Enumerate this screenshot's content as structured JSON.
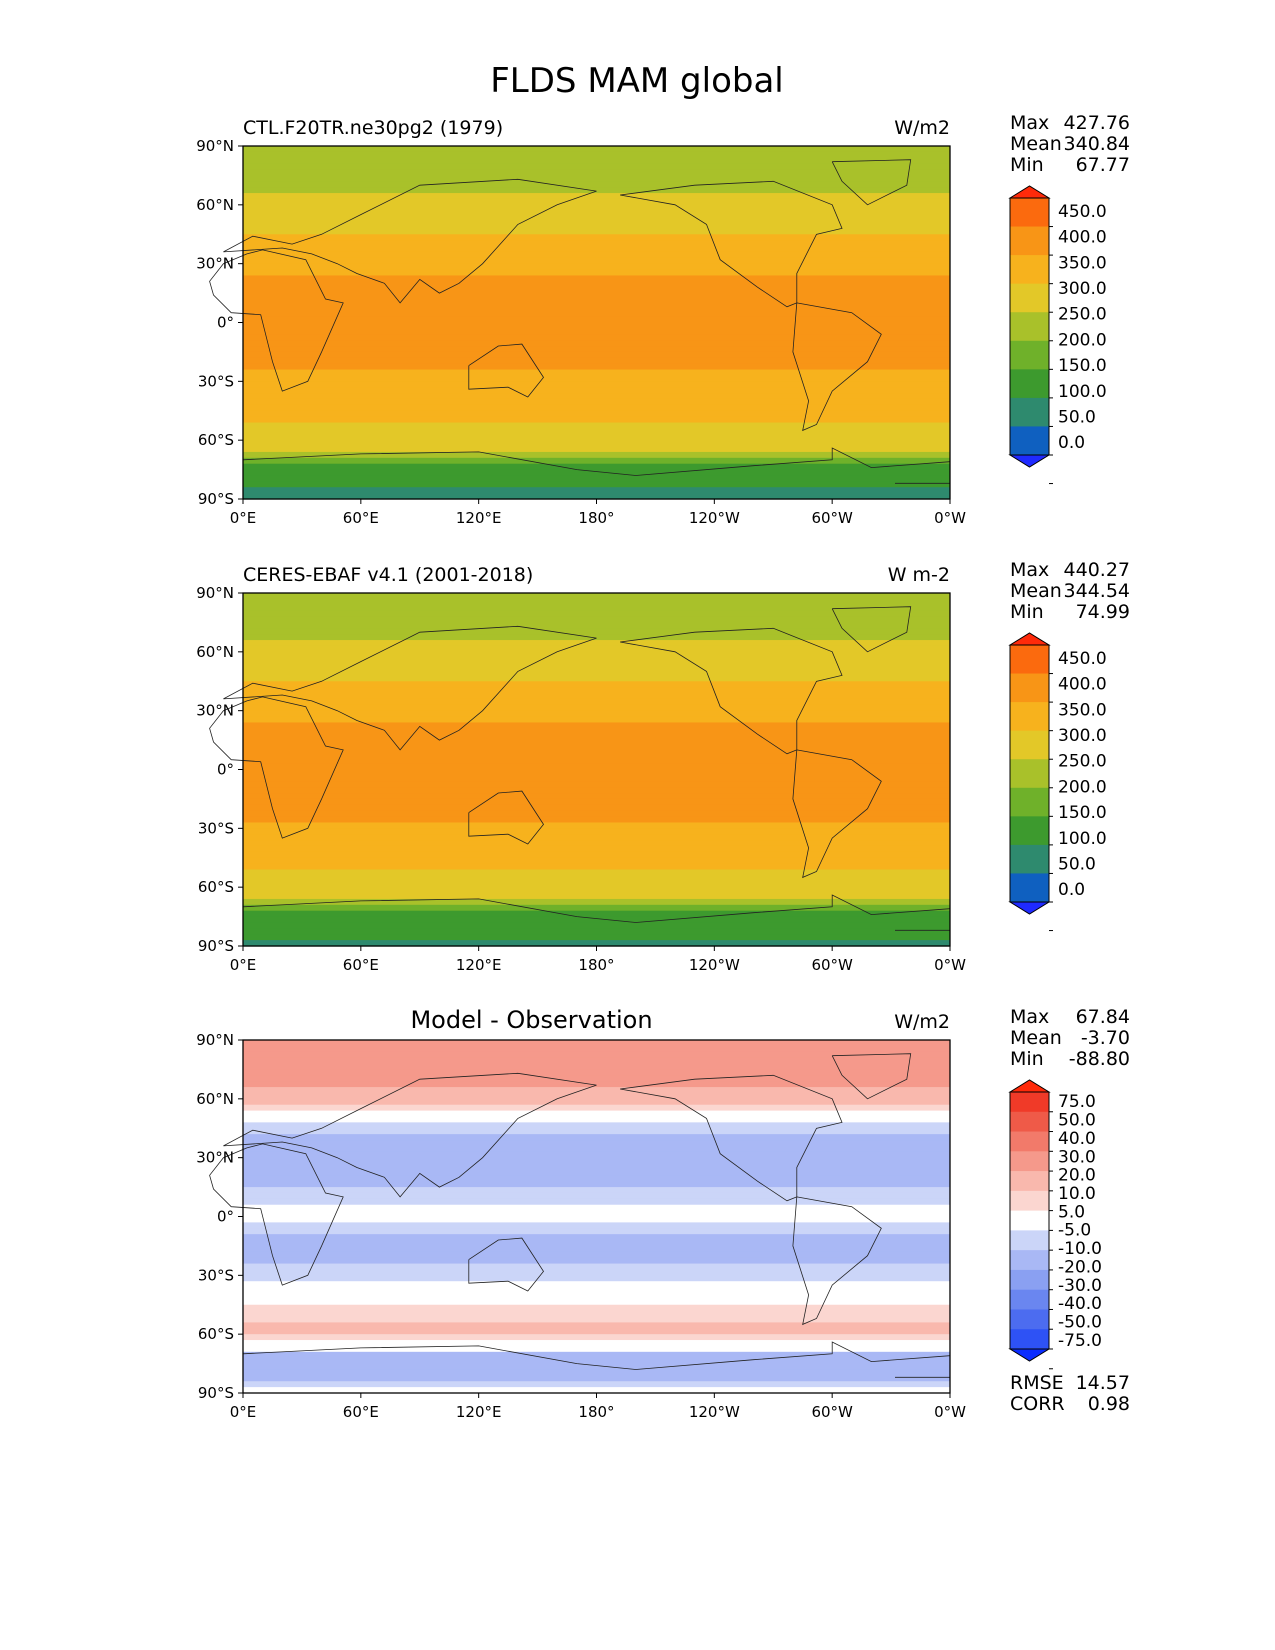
{
  "figure_title": "FLDS MAM global",
  "chart_data": [
    {
      "type": "heatmap",
      "title": "CTL.F20TR.ne30pg2 (1979)",
      "units": "W/m2",
      "xticklabels": [
        "0°E",
        "60°E",
        "120°E",
        "180°",
        "120°W",
        "60°W",
        "0°W"
      ],
      "yticklabels": [
        "90°N",
        "60°N",
        "30°N",
        "0°",
        "30°S",
        "60°S",
        "90°S"
      ],
      "xlim": [
        0,
        360
      ],
      "ylim": [
        -90,
        90
      ],
      "stats": {
        "max_label": "Max",
        "max": "427.76",
        "mean_label": "Mean",
        "mean": "340.84",
        "min_label": "Min",
        "min": "67.77"
      },
      "colorbar": {
        "levels": [
          "450.0",
          "400.0",
          "350.0",
          "300.0",
          "250.0",
          "200.0",
          "150.0",
          "100.0",
          "50.0",
          "0.0"
        ],
        "colors": [
          "#1f2aff",
          "#0f60c0",
          "#2e8a6e",
          "#3d9a2e",
          "#6fb12a",
          "#a9c12a",
          "#e3c828",
          "#f7b21d",
          "#f89516",
          "#fb6a0e",
          "#ff2a0a"
        ]
      },
      "zonal_profile": {
        "lat": [
          -90,
          -75,
          -70,
          -65,
          -60,
          -50,
          -40,
          -30,
          -20,
          -10,
          0,
          10,
          20,
          30,
          40,
          50,
          60,
          70,
          80,
          90
        ],
        "value": [
          90,
          110,
          200,
          250,
          270,
          300,
          320,
          340,
          360,
          370,
          380,
          380,
          360,
          330,
          310,
          290,
          270,
          240,
          220,
          210
        ]
      }
    },
    {
      "type": "heatmap",
      "title": "CERES-EBAF v4.1 (2001-2018)",
      "units": "W m-2",
      "xticklabels": [
        "0°E",
        "60°E",
        "120°E",
        "180°",
        "120°W",
        "60°W",
        "0°W"
      ],
      "yticklabels": [
        "90°N",
        "60°N",
        "30°N",
        "0°",
        "30°S",
        "60°S",
        "90°S"
      ],
      "xlim": [
        0,
        360
      ],
      "ylim": [
        -90,
        90
      ],
      "stats": {
        "max_label": "Max",
        "max": "440.27",
        "mean_label": "Mean",
        "mean": "344.54",
        "min_label": "Min",
        "min": "74.99"
      },
      "colorbar": {
        "levels": [
          "450.0",
          "400.0",
          "350.0",
          "300.0",
          "250.0",
          "200.0",
          "150.0",
          "100.0",
          "50.0",
          "0.0"
        ],
        "colors": [
          "#1f2aff",
          "#0f60c0",
          "#2e8a6e",
          "#3d9a2e",
          "#6fb12a",
          "#a9c12a",
          "#e3c828",
          "#f7b21d",
          "#f89516",
          "#fb6a0e",
          "#ff2a0a"
        ]
      },
      "zonal_profile": {
        "lat": [
          -90,
          -75,
          -70,
          -65,
          -60,
          -50,
          -40,
          -30,
          -20,
          -10,
          0,
          10,
          20,
          30,
          40,
          50,
          60,
          70,
          80,
          90
        ],
        "value": [
          95,
          120,
          190,
          250,
          275,
          305,
          325,
          345,
          365,
          375,
          385,
          385,
          365,
          335,
          310,
          290,
          270,
          235,
          215,
          205
        ]
      }
    },
    {
      "type": "heatmap",
      "title": "Model - Observation",
      "units": "W/m2",
      "xticklabels": [
        "0°E",
        "60°E",
        "120°E",
        "180°",
        "120°W",
        "60°W",
        "0°W"
      ],
      "yticklabels": [
        "90°N",
        "60°N",
        "30°N",
        "0°",
        "30°S",
        "60°S",
        "90°S"
      ],
      "xlim": [
        0,
        360
      ],
      "ylim": [
        -90,
        90
      ],
      "stats": {
        "max_label": "Max",
        "max": "67.84",
        "mean_label": "Mean",
        "mean": "-3.70",
        "min_label": "Min",
        "min": "-88.80"
      },
      "extra_stats": {
        "rmse_label": "RMSE",
        "rmse": "14.57",
        "corr_label": "CORR",
        "corr": "0.98"
      },
      "colorbar": {
        "levels": [
          "75.0",
          "50.0",
          "40.0",
          "30.0",
          "20.0",
          "10.0",
          "5.0",
          "-5.0",
          "-10.0",
          "-20.0",
          "-30.0",
          "-40.0",
          "-50.0",
          "-75.0"
        ],
        "colors": [
          "#0a2cff",
          "#2e52f5",
          "#4c6cf0",
          "#6a86f0",
          "#8aa0f2",
          "#a9b8f5",
          "#cbd5f8",
          "#ffffff",
          "#fbd6d0",
          "#f9b8ad",
          "#f5998b",
          "#f27a6a",
          "#ef5a48",
          "#f03a28",
          "#ff2a0a"
        ]
      },
      "zonal_profile": {
        "lat": [
          -90,
          -80,
          -70,
          -60,
          -50,
          -40,
          -30,
          -20,
          -10,
          0,
          10,
          20,
          30,
          40,
          50,
          60,
          70,
          80,
          90
        ],
        "value": [
          3,
          -18,
          -10,
          12,
          8,
          2,
          -8,
          -12,
          -10,
          -2,
          -8,
          -12,
          -15,
          -12,
          -3,
          15,
          22,
          25,
          20
        ]
      }
    }
  ]
}
